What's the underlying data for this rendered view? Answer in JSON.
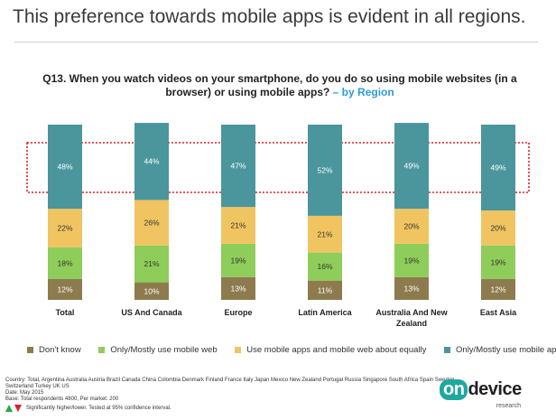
{
  "slide_title": "This preference towards mobile apps is evident in all regions.",
  "question": {
    "text": "Q13. When you watch videos on your smartphone, do you do so using mobile websites (in a browser) or using mobile apps?",
    "suffix": " – by Region"
  },
  "colors": {
    "dont_know": "#8d7b4e",
    "mobile_web": "#8fcd5a",
    "equal": "#f0c461",
    "apps": "#4a969c",
    "highlight_box": "#e02020"
  },
  "chart_data": {
    "type": "bar",
    "stacked": true,
    "percent_stacked": true,
    "categories": [
      "Total",
      "US And Canada",
      "Europe",
      "Latin America",
      "Australia And New Zealand",
      "East Asia"
    ],
    "series": [
      {
        "name": "Don't know",
        "values": [
          12,
          10,
          13,
          11,
          13,
          12
        ],
        "color": "#8d7b4e"
      },
      {
        "name": "Only/Mostly use mobile web",
        "values": [
          18,
          21,
          19,
          16,
          19,
          19
        ],
        "color": "#8fcd5a"
      },
      {
        "name": "Use mobile apps and mobile web about equally",
        "values": [
          22,
          26,
          21,
          21,
          20,
          20
        ],
        "color": "#f0c461"
      },
      {
        "name": "Only/Mostly use mobile apps",
        "values": [
          48,
          44,
          47,
          52,
          49,
          49
        ],
        "color": "#4a969c"
      }
    ],
    "data_labels": [
      [
        "12%",
        "10%",
        "13%",
        "11%",
        "13%",
        "12%"
      ],
      [
        "18%",
        "21%",
        "19%",
        "16%",
        "19%",
        "19%"
      ],
      [
        "22%",
        "26%",
        "21%",
        "21%",
        "20%",
        "20%"
      ],
      [
        "48%",
        "44%",
        "47%",
        "52%",
        "49%",
        "49%"
      ]
    ],
    "legend_position": "bottom"
  },
  "legend": [
    {
      "label": "Don't know",
      "color": "#8d7b4e"
    },
    {
      "label": "Only/Mostly use mobile web",
      "color": "#8fcd5a"
    },
    {
      "label": "Use mobile apps and mobile web about equally",
      "color": "#f0c461"
    },
    {
      "label": "Only/Mostly use mobile apps",
      "color": "#4a969c"
    }
  ],
  "notes": {
    "country": "Country: Total, Argentina Australia Austria Brazil Canada China Colombia Denmark Finland France Italy Japan Mexico New Zealand Portugal Russia Singapore South Africa Spain Sweden Switzerland Turkey UK US",
    "date": "Date: May 2015",
    "base": "Base: Total respondents 4800, Per market: 200"
  },
  "footnote": "Significantly higher/lower. Tested at 95% confidence interval.",
  "logo": {
    "brand_on": "on",
    "brand_rest": "device",
    "sub": "research"
  }
}
